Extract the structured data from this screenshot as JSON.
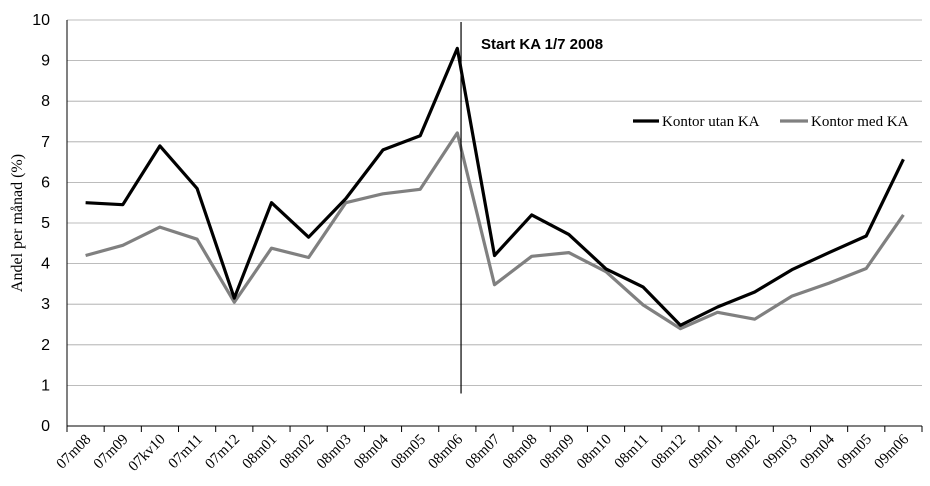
{
  "chart_data": {
    "type": "line",
    "ylabel": "Andel per månad (%)",
    "xlabel": "",
    "ylim": [
      0,
      10
    ],
    "yticks": [
      "0",
      "1",
      "2",
      "3",
      "4",
      "5",
      "6",
      "7",
      "8",
      "9",
      "10"
    ],
    "grid": "horizontal",
    "legend_position": "right",
    "categories": [
      "07m08",
      "07m09",
      "07kv10",
      "07m11",
      "07m12",
      "08m01",
      "08m02",
      "08m03",
      "08m04",
      "08m05",
      "08m06",
      "08m07",
      "08m08",
      "08m09",
      "08m10",
      "08m11",
      "08m12",
      "09m01",
      "09m02",
      "09m03",
      "09m04",
      "09m05",
      "09m06"
    ],
    "series": [
      {
        "name": "Kontor utan KA",
        "color": "#000000",
        "values": [
          5.5,
          5.45,
          6.9,
          5.85,
          3.15,
          5.5,
          4.65,
          5.6,
          6.8,
          7.15,
          9.3,
          4.2,
          5.2,
          4.72,
          3.87,
          3.42,
          2.48,
          2.93,
          3.3,
          3.85,
          4.27,
          4.68,
          6.57
        ]
      },
      {
        "name": "Kontor med KA",
        "color": "#808080",
        "values": [
          4.2,
          4.45,
          4.9,
          4.6,
          3.05,
          4.38,
          4.15,
          5.5,
          5.72,
          5.83,
          7.22,
          3.48,
          4.18,
          4.27,
          3.8,
          2.98,
          2.4,
          2.8,
          2.63,
          3.2,
          3.52,
          3.88,
          5.2
        ]
      }
    ],
    "annotations": [
      {
        "text": "Start KA 1/7 2008",
        "marker_x": 10.6,
        "marker_y_from": 0.8,
        "marker_y_to": 9.9
      }
    ]
  }
}
